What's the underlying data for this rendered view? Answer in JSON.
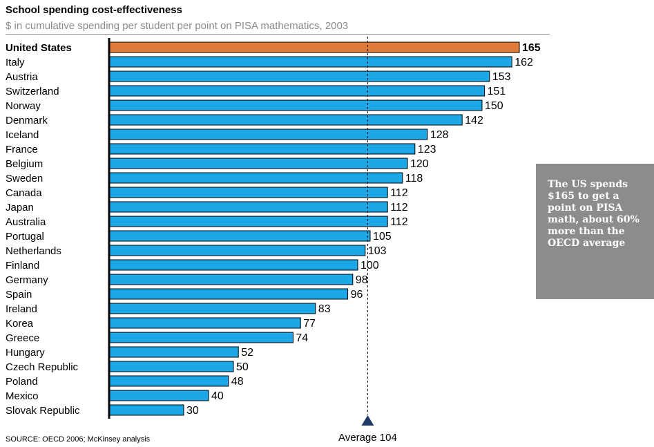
{
  "header": {
    "title": "School spending cost-effectiveness",
    "subtitle": "$ in cumulative spending per student per point on PISA mathematics, 2003"
  },
  "callout": {
    "text": "The US spends $165 to get a point on PISA math, about 60% more than the OECD average"
  },
  "source": "SOURCE: OECD 2006; McKinsey analysis",
  "colors": {
    "highlight": "#e07b39",
    "bar": "#1ea7e6",
    "callout_bg": "#8c8c8c"
  },
  "chart_data": {
    "type": "bar",
    "orientation": "horizontal",
    "categories": [
      "United States",
      "Italy",
      "Austria",
      "Switzerland",
      "Norway",
      "Denmark",
      "Iceland",
      "France",
      "Belgium",
      "Sweden",
      "Canada",
      "Japan",
      "Australia",
      "Portugal",
      "Netherlands",
      "Finland",
      "Germany",
      "Spain",
      "Ireland",
      "Korea",
      "Greece",
      "Hungary",
      "Czech Republic",
      "Poland",
      "Mexico",
      "Slovak Republic"
    ],
    "values": [
      165,
      162,
      153,
      151,
      150,
      142,
      128,
      123,
      120,
      118,
      112,
      112,
      112,
      105,
      103,
      100,
      98,
      96,
      83,
      77,
      74,
      52,
      50,
      48,
      40,
      30
    ],
    "highlight_category": "United States",
    "average": {
      "value": 104,
      "label": "Average 104"
    },
    "title": "School spending cost-effectiveness",
    "xlabel": "",
    "ylabel": "",
    "xlim": [
      0,
      165
    ],
    "grid": false,
    "legend": "none"
  }
}
